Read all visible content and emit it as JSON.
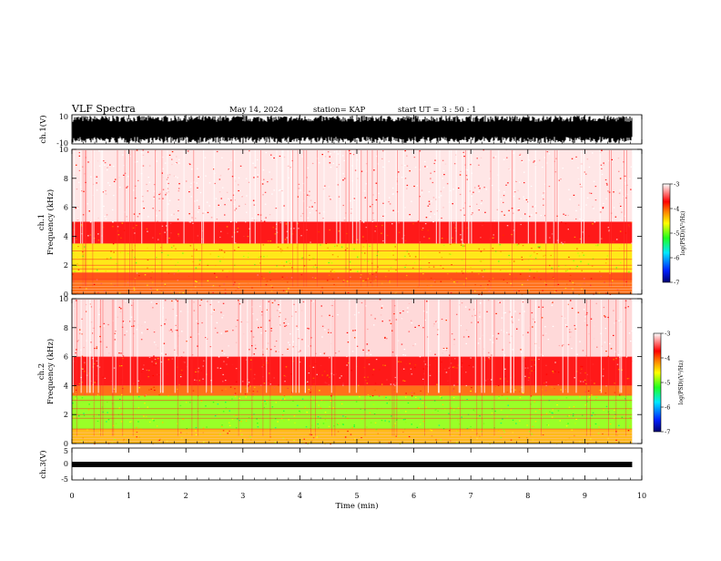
{
  "header": {
    "title": "VLF Spectra",
    "date": "May 14, 2024",
    "station": "station= KAP",
    "start": "start  UT =   3  : 50 : 1"
  },
  "colors": {
    "white": "#ffffff",
    "red": "#e8262a",
    "orange": "#ff9a00",
    "yellow": "#ffee00",
    "green": "#2ee62e",
    "blue": "#1030e0",
    "navy": "#000070",
    "waveform": "#000000"
  },
  "chart_data": [
    {
      "type": "line",
      "panel": "ch1-waveform",
      "ylabel": "ch.1(V)",
      "ylim": [
        -10,
        10
      ],
      "yticks": [
        "10",
        "-10"
      ],
      "xlim": [
        0,
        10
      ],
      "x_end": 9.83,
      "series": [
        {
          "values_envelope": [
            -10,
            10
          ]
        }
      ]
    },
    {
      "type": "heatmap",
      "panel": "ch1-spectrogram",
      "ylabel": "Frequency (kHz)",
      "channel_label": "ch.1",
      "ylim": [
        0,
        10
      ],
      "yticks": [
        "0",
        "2",
        "4",
        "6",
        "8",
        "10"
      ],
      "xlim": [
        0,
        10
      ],
      "x_end": 9.83,
      "dominant_levels": [
        {
          "f_from": 0,
          "f_to": 1.0,
          "level": -4.0
        },
        {
          "f_from": 1.0,
          "f_to": 1.5,
          "level": -3.9
        },
        {
          "f_from": 1.5,
          "f_to": 3.5,
          "level": -4.5
        },
        {
          "f_from": 3.5,
          "f_to": 5.0,
          "level": -3.7
        },
        {
          "f_from": 5.0,
          "f_to": 10,
          "level": -3.2
        }
      ],
      "colorbar": {
        "label": "log(PSD)(V²/Hz)",
        "range": [
          -7,
          -3
        ],
        "ticks": [
          "-3",
          "-4",
          "-5",
          "-6",
          "-7"
        ]
      }
    },
    {
      "type": "heatmap",
      "panel": "ch2-spectrogram",
      "ylabel": "Frequency (kHz)",
      "channel_label": "ch.2",
      "ylim": [
        0,
        10
      ],
      "yticks": [
        "0",
        "2",
        "4",
        "6",
        "8",
        "10"
      ],
      "xlim": [
        0,
        10
      ],
      "x_end": 9.83,
      "dominant_levels": [
        {
          "f_from": 0,
          "f_to": 1.0,
          "level": -4.3
        },
        {
          "f_from": 1.0,
          "f_to": 3.3,
          "level": -4.9
        },
        {
          "f_from": 3.3,
          "f_to": 4.0,
          "level": -4.0
        },
        {
          "f_from": 4.0,
          "f_to": 6.0,
          "level": -3.7
        },
        {
          "f_from": 6.0,
          "f_to": 10,
          "level": -3.3
        }
      ],
      "colorbar": {
        "label": "log(PSD)(V²/Hz)",
        "range": [
          -7,
          -3
        ],
        "ticks": [
          "-3",
          "-4",
          "-5",
          "-6",
          "-7"
        ]
      }
    },
    {
      "type": "line",
      "panel": "ch3-waveform",
      "ylabel": "ch.3(V)",
      "ylim": [
        -5,
        5
      ],
      "yticks": [
        "5",
        "0",
        "-5"
      ],
      "xlim": [
        0,
        10
      ],
      "x_end": 9.83,
      "series": [
        {
          "values_envelope": [
            -0.5,
            0.5
          ]
        }
      ]
    }
  ],
  "xaxis": {
    "label": "Time (min)",
    "ticks": [
      "0",
      "1",
      "2",
      "3",
      "4",
      "5",
      "6",
      "7",
      "8",
      "9",
      "10"
    ]
  }
}
